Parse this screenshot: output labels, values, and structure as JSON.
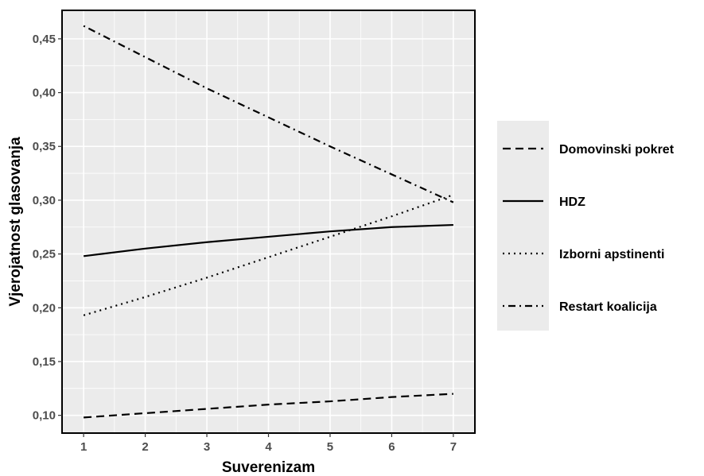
{
  "chart_data": {
    "type": "line",
    "title": "",
    "xlabel": "Suverenizam",
    "ylabel": "Vjerojatnost glasovanja",
    "x": [
      1,
      2,
      3,
      4,
      5,
      6,
      7
    ],
    "xlim": [
      0.65,
      7.35
    ],
    "ylim": [
      0.0835,
      0.4765
    ],
    "x_ticks": [
      1,
      2,
      3,
      4,
      5,
      6,
      7
    ],
    "x_tick_labels": [
      "1",
      "2",
      "3",
      "4",
      "5",
      "6",
      "7"
    ],
    "y_ticks": [
      0.1,
      0.15,
      0.2,
      0.25,
      0.3,
      0.35,
      0.4,
      0.45
    ],
    "y_tick_labels": [
      "0,10",
      "0,15",
      "0,20",
      "0,25",
      "0,30",
      "0,35",
      "0,40",
      "0,45"
    ],
    "grid": true,
    "legend_position": "right",
    "series": [
      {
        "name": "Domovinski pokret",
        "dash": "dashed",
        "values": [
          0.098,
          0.102,
          0.106,
          0.11,
          0.113,
          0.117,
          0.12
        ]
      },
      {
        "name": "HDZ",
        "dash": "solid",
        "values": [
          0.248,
          0.255,
          0.261,
          0.266,
          0.271,
          0.275,
          0.277
        ]
      },
      {
        "name": "Izborni apstinenti",
        "dash": "dotted",
        "values": [
          0.193,
          0.21,
          0.228,
          0.247,
          0.266,
          0.285,
          0.305
        ]
      },
      {
        "name": "Restart koalicija",
        "dash": "dotdash",
        "values": [
          0.462,
          0.433,
          0.404,
          0.377,
          0.35,
          0.324,
          0.298
        ]
      }
    ],
    "colors": {
      "panel": "#ebebeb",
      "grid": "#ffffff",
      "line": "#000000",
      "legend_bg": "#ebebeb"
    }
  }
}
